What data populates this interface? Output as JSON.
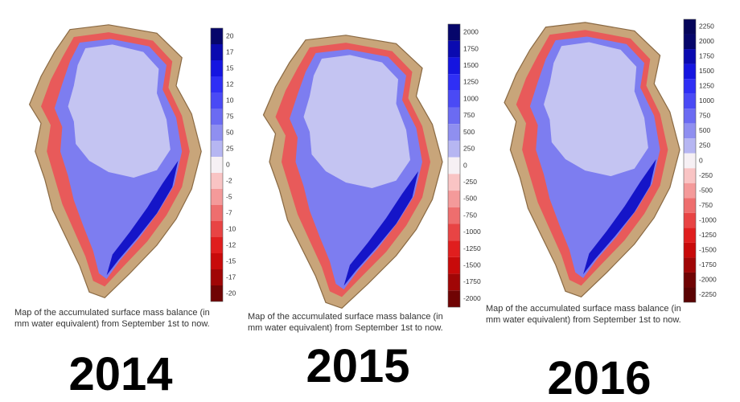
{
  "panels": [
    {
      "colorbar": [
        "20",
        "17",
        "15",
        "12",
        "10",
        "75",
        "50",
        "25",
        "0",
        "-2",
        "-5",
        "-7",
        "-10",
        "-12",
        "-15",
        "-17",
        "-20"
      ],
      "caption": [
        "Map of the accumulated surface mass balance (in",
        "mm water equivalent) from September 1st to now."
      ],
      "year": "2014"
    },
    {
      "colorbar": [
        "2000",
        "1750",
        "1500",
        "1250",
        "1000",
        "750",
        "500",
        "250",
        "0",
        "-250",
        "-500",
        "-750",
        "-1000",
        "-1250",
        "-1500",
        "-1750",
        "-2000"
      ],
      "caption": [
        "Map of the accumulated surface mass balance (in",
        "mm water equivalent) from September 1st to now."
      ],
      "year": "2015"
    },
    {
      "colorbar": [
        "2250",
        "2000",
        "1750",
        "1500",
        "1250",
        "1000",
        "750",
        "500",
        "250",
        "0",
        "-250",
        "-500",
        "-750",
        "-1000",
        "-1250",
        "-1500",
        "-1750",
        "-2000",
        "-2250"
      ],
      "caption": [
        "Map of the accumulated surface mass balance (in",
        "mm water equivalent) from September 1st to now."
      ],
      "year": "2016"
    }
  ]
}
